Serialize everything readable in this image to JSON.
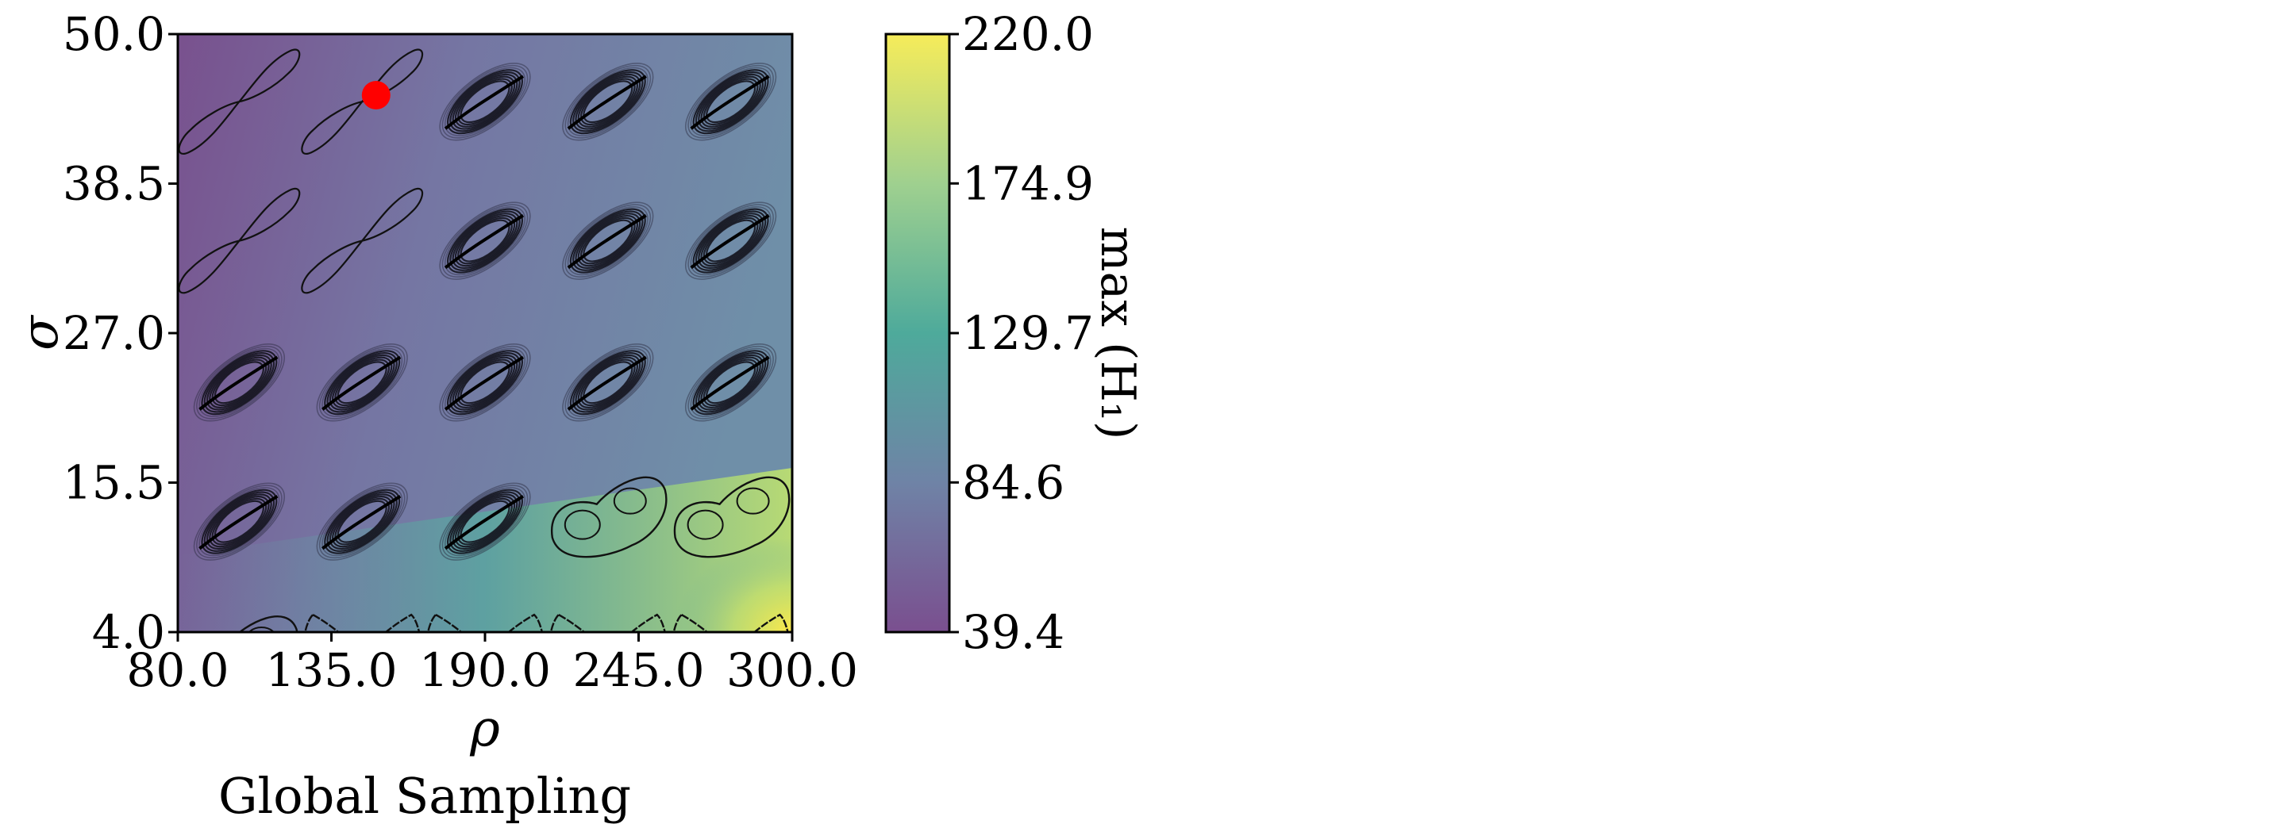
{
  "chart_data": {
    "type": "heatmap",
    "caption": "Global Sampling",
    "xlabel": "ρ",
    "ylabel": "σ",
    "xlim": [
      80.0,
      300.0
    ],
    "ylim": [
      4.0,
      50.0
    ],
    "x_ticks": [
      "80.0",
      "135.0",
      "190.0",
      "245.0",
      "300.0"
    ],
    "y_ticks": [
      "4.0",
      "15.5",
      "27.0",
      "38.5",
      "50.0"
    ],
    "colorbar": {
      "label": "max (H₁)",
      "range": [
        39.4,
        220.0
      ],
      "ticks": [
        "39.4",
        "84.6",
        "129.7",
        "174.9",
        "220.0"
      ],
      "colormap": [
        "#7a4f8f",
        "#6f83a6",
        "#4eaa9b",
        "#9fd08f",
        "#f6ec5a"
      ]
    },
    "highlight_point": {
      "rho": 151,
      "sigma": 45.3,
      "color": "#ff0000"
    },
    "attractor_grid": {
      "rho_centers": [
        102,
        146,
        190,
        234,
        278
      ],
      "sigma_centers": [
        44.8,
        34.1,
        23.2,
        12.5,
        1.8
      ],
      "rows_top_to_bottom": [
        [
          "wing",
          "wing",
          "dense",
          "dense",
          "dense"
        ],
        [
          "wing",
          "wing",
          "dense",
          "dense",
          "dense"
        ],
        [
          "dense",
          "dense",
          "dense",
          "dense",
          "dense"
        ],
        [
          "dense",
          "dense",
          "dense",
          "loop",
          "loop"
        ],
        [
          "loop",
          "bow",
          "bow",
          "bow",
          "bow"
        ]
      ]
    }
  }
}
